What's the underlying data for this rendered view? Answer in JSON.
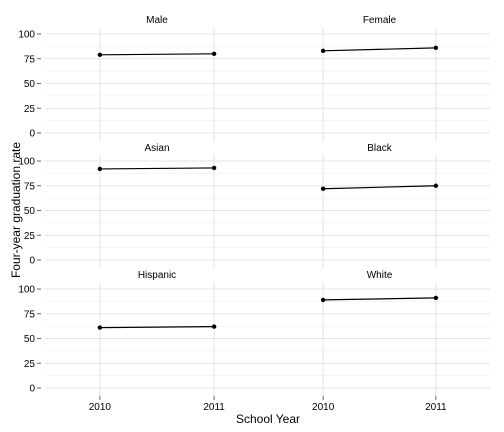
{
  "chart_data": {
    "type": "line",
    "xlabel": "School Year",
    "ylabel": "Four-year graduation rate",
    "x": [
      "2010",
      "2011"
    ],
    "ylim": [
      0,
      100
    ],
    "yticks": [
      "0",
      "25",
      "50",
      "75",
      "100"
    ],
    "grid": true,
    "panels": [
      {
        "title": "Male",
        "values": [
          79,
          80
        ]
      },
      {
        "title": "Female",
        "values": [
          83,
          86
        ]
      },
      {
        "title": "Asian",
        "values": [
          92,
          93
        ]
      },
      {
        "title": "Black",
        "values": [
          72,
          75
        ]
      },
      {
        "title": "Hispanic",
        "values": [
          61,
          62
        ]
      },
      {
        "title": "White",
        "values": [
          89,
          91
        ]
      }
    ]
  }
}
